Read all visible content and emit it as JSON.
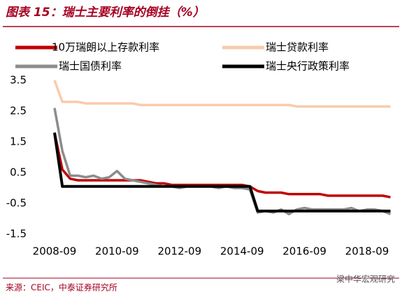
{
  "chart_data": {
    "type": "line",
    "title": "图表 15：瑞士主要利率的倒挂（%）",
    "source": "来源：CEIC，中泰证券研究所",
    "watermark": "梁中华宏观研究",
    "x": [
      "2008-09",
      "2008-12",
      "2009-03",
      "2009-06",
      "2009-09",
      "2009-12",
      "2010-03",
      "2010-06",
      "2010-09",
      "2010-12",
      "2011-03",
      "2011-06",
      "2011-09",
      "2011-12",
      "2012-03",
      "2012-06",
      "2012-09",
      "2012-12",
      "2013-03",
      "2013-06",
      "2013-09",
      "2013-12",
      "2014-03",
      "2014-06",
      "2014-09",
      "2014-12",
      "2015-03",
      "2015-06",
      "2015-09",
      "2015-12",
      "2016-03",
      "2016-06",
      "2016-09",
      "2016-12",
      "2017-03",
      "2017-06",
      "2017-09",
      "2017-12",
      "2018-03",
      "2018-06",
      "2018-09",
      "2018-12",
      "2019-03",
      "2019-06"
    ],
    "series": [
      {
        "name": "10万瑞朗以上存款利率",
        "color": "#c00000",
        "values": [
          1.8,
          0.6,
          0.3,
          0.25,
          0.25,
          0.25,
          0.25,
          0.25,
          0.25,
          0.25,
          0.25,
          0.25,
          0.2,
          0.15,
          0.15,
          0.1,
          0.1,
          0.1,
          0.1,
          0.1,
          0.1,
          0.1,
          0.1,
          0.1,
          0.1,
          0.05,
          -0.1,
          -0.15,
          -0.15,
          -0.15,
          -0.2,
          -0.2,
          -0.2,
          -0.2,
          -0.2,
          -0.25,
          -0.25,
          -0.25,
          -0.25,
          -0.25,
          -0.25,
          -0.25,
          -0.25,
          -0.3
        ]
      },
      {
        "name": "瑞士贷款利率",
        "color": "#f8cbad",
        "values": [
          3.5,
          2.8,
          2.8,
          2.8,
          2.75,
          2.75,
          2.75,
          2.75,
          2.75,
          2.75,
          2.75,
          2.7,
          2.7,
          2.7,
          2.7,
          2.7,
          2.7,
          2.7,
          2.7,
          2.7,
          2.7,
          2.7,
          2.7,
          2.7,
          2.7,
          2.7,
          2.7,
          2.7,
          2.7,
          2.7,
          2.7,
          2.65,
          2.65,
          2.65,
          2.65,
          2.65,
          2.65,
          2.65,
          2.65,
          2.65,
          2.65,
          2.65,
          2.65,
          2.65
        ]
      },
      {
        "name": "瑞士国债利率",
        "color": "#8c8c8c",
        "values": [
          2.6,
          1.2,
          0.4,
          0.4,
          0.35,
          0.4,
          0.3,
          0.35,
          0.55,
          0.3,
          0.25,
          0.2,
          0.15,
          0.1,
          0.05,
          0.05,
          0.0,
          0.05,
          0.05,
          0.05,
          0.05,
          0.0,
          0.05,
          0.0,
          0.0,
          -0.05,
          -0.8,
          -0.75,
          -0.8,
          -0.7,
          -0.85,
          -0.7,
          -0.65,
          -0.7,
          -0.7,
          -0.7,
          -0.7,
          -0.7,
          -0.65,
          -0.75,
          -0.7,
          -0.7,
          -0.75,
          -0.85
        ]
      },
      {
        "name": "瑞士央行政策利率",
        "color": "#000000",
        "values": [
          1.8,
          0.05,
          0.05,
          0.05,
          0.05,
          0.05,
          0.05,
          0.05,
          0.05,
          0.05,
          0.05,
          0.05,
          0.05,
          0.05,
          0.05,
          0.05,
          0.05,
          0.05,
          0.05,
          0.05,
          0.05,
          0.05,
          0.05,
          0.05,
          0.05,
          0.05,
          -0.75,
          -0.75,
          -0.75,
          -0.75,
          -0.75,
          -0.75,
          -0.75,
          -0.75,
          -0.75,
          -0.75,
          -0.75,
          -0.75,
          -0.75,
          -0.75,
          -0.75,
          -0.75,
          -0.75,
          -0.75
        ]
      }
    ],
    "xlim": [
      "2008-09",
      "2019-08"
    ],
    "xticks": [
      "2008-09",
      "2010-09",
      "2012-09",
      "2014-09",
      "2016-09",
      "2018-09"
    ],
    "ylim": [
      -1.5,
      3.5
    ],
    "yticks": [
      3.5,
      2.5,
      1.5,
      0.5,
      -0.5,
      -1.5
    ]
  }
}
